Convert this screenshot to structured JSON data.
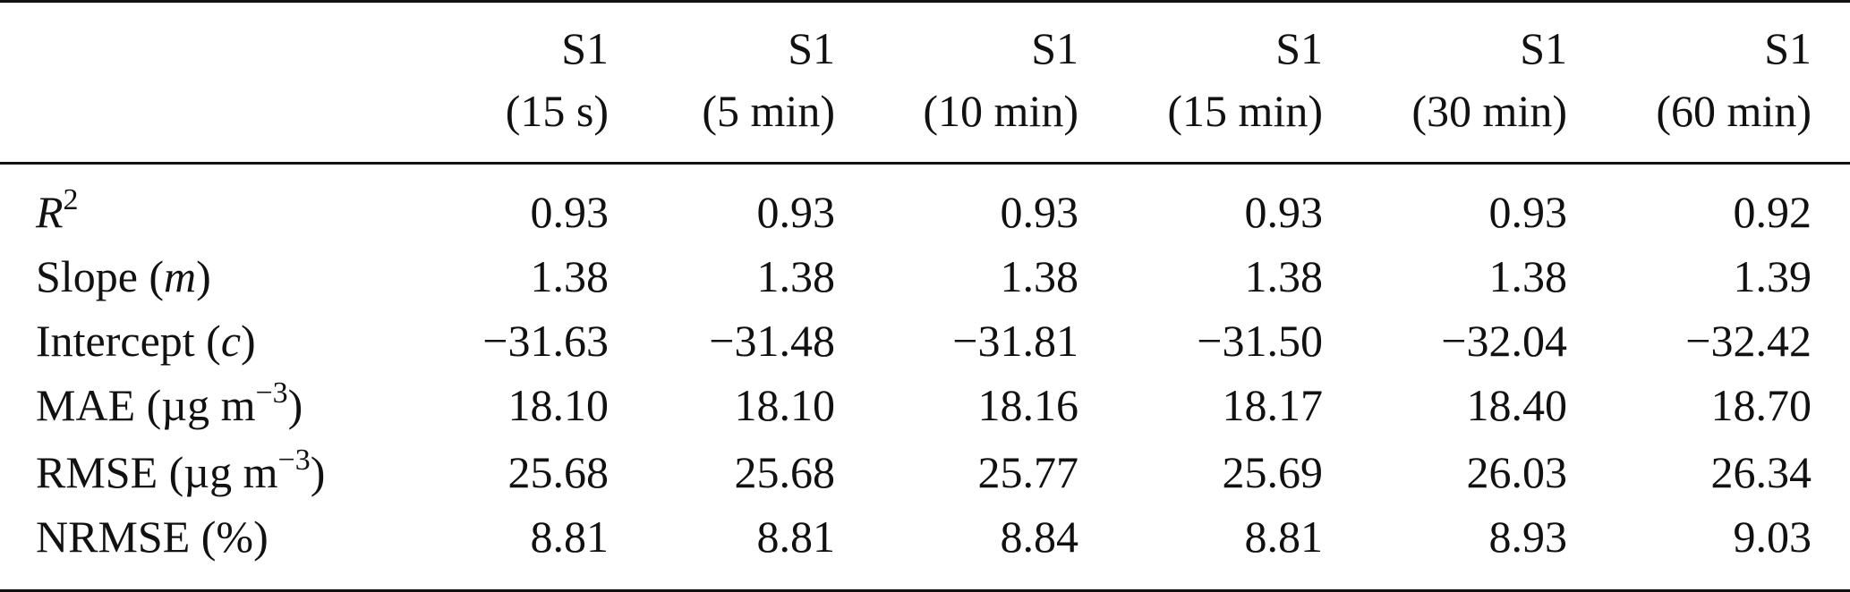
{
  "table": {
    "columns": [
      {
        "line1": "S1",
        "line2": "(15 s)"
      },
      {
        "line1": "S1",
        "line2": "(5 min)"
      },
      {
        "line1": "S1",
        "line2": "(10 min)"
      },
      {
        "line1": "S1",
        "line2": "(15 min)"
      },
      {
        "line1": "S1",
        "line2": "(30 min)"
      },
      {
        "line1": "S1",
        "line2": "(60 min)"
      }
    ],
    "rows": [
      {
        "label_main": "R",
        "label_sup": "2",
        "label_suffix": "",
        "label_italic": "",
        "label_close": "",
        "values": [
          "0.93",
          "0.93",
          "0.93",
          "0.93",
          "0.93",
          "0.92"
        ]
      },
      {
        "label_main": "Slope (",
        "label_italic": "m",
        "label_close": ")",
        "values": [
          "1.38",
          "1.38",
          "1.38",
          "1.38",
          "1.38",
          "1.39"
        ]
      },
      {
        "label_main": "Intercept (",
        "label_italic": "c",
        "label_close": ")",
        "values": [
          "−31.63",
          "−31.48",
          "−31.81",
          "−31.50",
          "−32.04",
          "−32.42"
        ]
      },
      {
        "label_main": "MAE (µg m",
        "label_sup": "−3",
        "label_close": ")",
        "values": [
          "18.10",
          "18.10",
          "18.16",
          "18.17",
          "18.40",
          "18.70"
        ]
      },
      {
        "label_main": "RMSE (µg m",
        "label_sup": "−3",
        "label_close": ")",
        "values": [
          "25.68",
          "25.68",
          "25.77",
          "25.69",
          "26.03",
          "26.34"
        ]
      },
      {
        "label_main": "NRMSE (%)",
        "values": [
          "8.81",
          "8.81",
          "8.84",
          "8.81",
          "8.93",
          "9.03"
        ]
      }
    ]
  }
}
